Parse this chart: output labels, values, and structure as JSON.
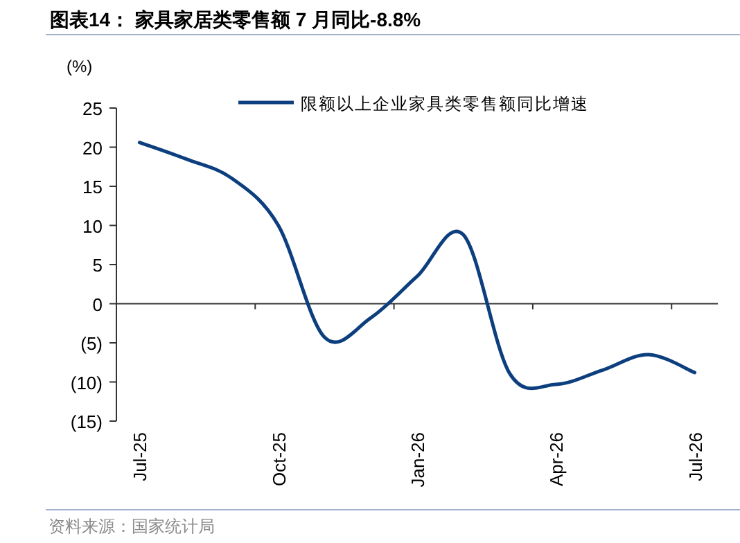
{
  "chart_data": {
    "type": "line",
    "title": "图表14：  家具家居类零售额 7 月同比-8.8%",
    "ylabel": "(%)",
    "categories": [
      "Jul-25",
      null,
      null,
      "Oct-25",
      null,
      null,
      "Jan-26",
      null,
      null,
      "Apr-26",
      null,
      null,
      "Jul-26"
    ],
    "series": [
      {
        "name": "限额以上企业家具类零售额同比增速",
        "color": "#0d3f7f",
        "values": [
          20.6,
          18.5,
          16.0,
          10.0,
          -4.3,
          -1.8,
          3.5,
          8.8,
          -8.9,
          -10.3,
          -8.5,
          -6.5,
          -8.8
        ]
      }
    ],
    "ylim": [
      -15,
      25
    ],
    "yticks": [
      {
        "value": -15,
        "label": "(15)"
      },
      {
        "value": -10,
        "label": "(10)"
      },
      {
        "value": -5,
        "label": "(5)"
      },
      0,
      5,
      10,
      15,
      20,
      25
    ],
    "legend": "top",
    "marker": "none",
    "line_style": "solid",
    "annotations": [
      "资料来源：国家统计局"
    ]
  }
}
